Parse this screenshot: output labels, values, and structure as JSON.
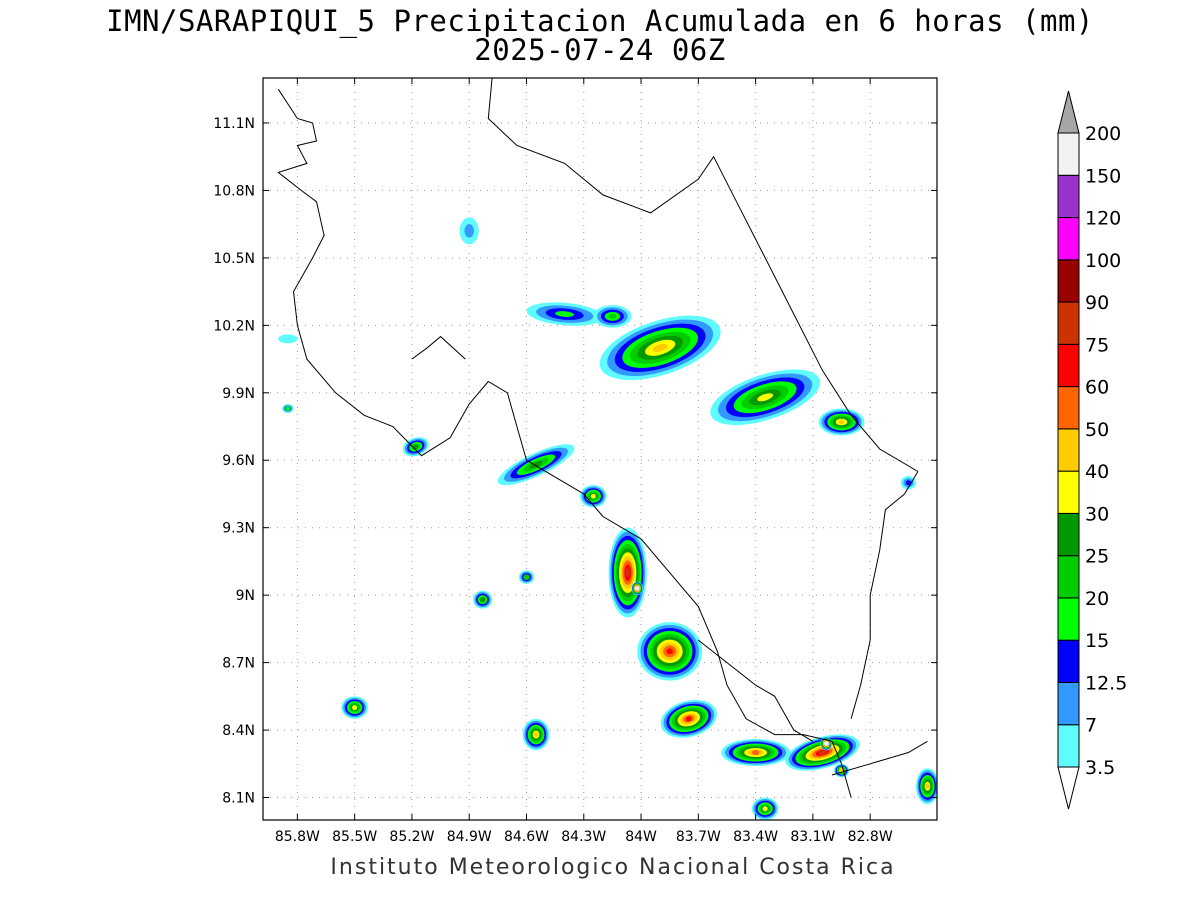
{
  "title_line1": "IMN/SARAPIQUI_5 Precipitacion Acumulada en 6 horas (mm)",
  "title_line2": "2025-07-24 06Z",
  "credit": "Instituto Meteorologico Nacional Costa Rica",
  "map": {
    "lon_range": [
      -85.98,
      -82.45
    ],
    "lat_range": [
      8.0,
      11.3
    ],
    "lon_ticks": [
      {
        "value": -85.8,
        "label": "85.8W"
      },
      {
        "value": -85.5,
        "label": "85.5W"
      },
      {
        "value": -85.2,
        "label": "85.2W"
      },
      {
        "value": -84.9,
        "label": "84.9W"
      },
      {
        "value": -84.6,
        "label": "84.6W"
      },
      {
        "value": -84.3,
        "label": "84.3W"
      },
      {
        "value": -84.0,
        "label": "84W"
      },
      {
        "value": -83.7,
        "label": "83.7W"
      },
      {
        "value": -83.4,
        "label": "83.4W"
      },
      {
        "value": -83.1,
        "label": "83.1W"
      },
      {
        "value": -82.8,
        "label": "82.8W"
      }
    ],
    "lat_ticks": [
      {
        "value": 11.1,
        "label": "11.1N"
      },
      {
        "value": 10.8,
        "label": "10.8N"
      },
      {
        "value": 10.5,
        "label": "10.5N"
      },
      {
        "value": 10.2,
        "label": "10.2N"
      },
      {
        "value": 9.9,
        "label": "9.9N"
      },
      {
        "value": 9.6,
        "label": "9.6N"
      },
      {
        "value": 9.3,
        "label": "9.3N"
      },
      {
        "value": 9.0,
        "label": "9N"
      },
      {
        "value": 8.7,
        "label": "8.7N"
      },
      {
        "value": 8.4,
        "label": "8.4N"
      },
      {
        "value": 8.1,
        "label": "8.1N"
      }
    ]
  },
  "legend": {
    "levels": [
      "3.5",
      "7",
      "12.5",
      "15",
      "20",
      "25",
      "30",
      "40",
      "50",
      "60",
      "75",
      "90",
      "100",
      "120",
      "150",
      "200"
    ],
    "colors": [
      "#5ffcff",
      "#3399ff",
      "#0000ff",
      "#00ff00",
      "#00cc00",
      "#009900",
      "#ffff00",
      "#ffcc00",
      "#ff6600",
      "#ff0000",
      "#cc3300",
      "#990000",
      "#ff00ff",
      "#9933cc",
      "#f2f2f2"
    ],
    "top_color": "#a6a6a6",
    "bottom_color": "#ffffff"
  },
  "precip_cells": [
    {
      "lon": -84.4,
      "lat": 10.25,
      "rx": 0.2,
      "ry": 0.05,
      "rot": -5,
      "peak": 15
    },
    {
      "lon": -84.15,
      "lat": 10.24,
      "rx": 0.1,
      "ry": 0.05,
      "rot": 0,
      "peak": 20
    },
    {
      "lon": -83.9,
      "lat": 10.1,
      "rx": 0.33,
      "ry": 0.12,
      "rot": 18,
      "peak": 45
    },
    {
      "lon": -83.35,
      "lat": 9.88,
      "rx": 0.3,
      "ry": 0.1,
      "rot": 18,
      "peak": 30
    },
    {
      "lon": -82.95,
      "lat": 9.77,
      "rx": 0.12,
      "ry": 0.06,
      "rot": 0,
      "peak": 40
    },
    {
      "lon": -85.18,
      "lat": 9.66,
      "rx": 0.07,
      "ry": 0.04,
      "rot": 20,
      "peak": 25
    },
    {
      "lon": -85.85,
      "lat": 9.83,
      "rx": 0.03,
      "ry": 0.02,
      "rot": 0,
      "peak": 15
    },
    {
      "lon": -84.9,
      "lat": 10.62,
      "rx": 0.05,
      "ry": 0.06,
      "rot": 0,
      "peak": 7
    },
    {
      "lon": -85.85,
      "lat": 10.14,
      "rx": 0.05,
      "ry": 0.02,
      "rot": 0,
      "peak": 3.5
    },
    {
      "lon": -84.55,
      "lat": 9.58,
      "rx": 0.22,
      "ry": 0.05,
      "rot": 25,
      "peak": 25
    },
    {
      "lon": -84.25,
      "lat": 9.44,
      "rx": 0.07,
      "ry": 0.05,
      "rot": 0,
      "peak": 30
    },
    {
      "lon": -84.07,
      "lat": 9.1,
      "rx": 0.1,
      "ry": 0.2,
      "rot": 0,
      "peak": 75
    },
    {
      "lon": -84.02,
      "lat": 9.03,
      "rx": 0.03,
      "ry": 0.03,
      "rot": 0,
      "peak": 150
    },
    {
      "lon": -83.85,
      "lat": 8.75,
      "rx": 0.17,
      "ry": 0.13,
      "rot": 0,
      "peak": 60
    },
    {
      "lon": -84.6,
      "lat": 9.08,
      "rx": 0.04,
      "ry": 0.03,
      "rot": 0,
      "peak": 20
    },
    {
      "lon": -84.83,
      "lat": 8.98,
      "rx": 0.05,
      "ry": 0.04,
      "rot": 0,
      "peak": 25
    },
    {
      "lon": -85.5,
      "lat": 8.5,
      "rx": 0.07,
      "ry": 0.05,
      "rot": 0,
      "peak": 30
    },
    {
      "lon": -84.55,
      "lat": 8.38,
      "rx": 0.07,
      "ry": 0.07,
      "rot": 0,
      "peak": 40
    },
    {
      "lon": -83.75,
      "lat": 8.45,
      "rx": 0.15,
      "ry": 0.08,
      "rot": 15,
      "peak": 60
    },
    {
      "lon": -83.4,
      "lat": 8.3,
      "rx": 0.18,
      "ry": 0.06,
      "rot": 0,
      "peak": 50
    },
    {
      "lon": -83.05,
      "lat": 8.3,
      "rx": 0.2,
      "ry": 0.07,
      "rot": 15,
      "peak": 75
    },
    {
      "lon": -83.03,
      "lat": 8.34,
      "rx": 0.03,
      "ry": 0.03,
      "rot": 0,
      "peak": 150
    },
    {
      "lon": -82.95,
      "lat": 8.22,
      "rx": 0.04,
      "ry": 0.03,
      "rot": 0,
      "peak": 40
    },
    {
      "lon": -83.35,
      "lat": 8.05,
      "rx": 0.07,
      "ry": 0.05,
      "rot": 0,
      "peak": 30
    },
    {
      "lon": -82.5,
      "lat": 8.15,
      "rx": 0.06,
      "ry": 0.08,
      "rot": 0,
      "peak": 40
    },
    {
      "lon": -82.6,
      "lat": 9.5,
      "rx": 0.04,
      "ry": 0.03,
      "rot": 0,
      "peak": 12.5
    }
  ],
  "coastlines": [
    [
      [
        -85.9,
        11.25
      ],
      [
        -85.8,
        11.12
      ],
      [
        -85.72,
        11.1
      ],
      [
        -85.7,
        11.02
      ],
      [
        -85.8,
        11.0
      ],
      [
        -85.75,
        10.92
      ],
      [
        -85.9,
        10.88
      ],
      [
        -85.78,
        10.8
      ],
      [
        -85.7,
        10.75
      ],
      [
        -85.66,
        10.6
      ],
      [
        -85.72,
        10.5
      ],
      [
        -85.82,
        10.35
      ],
      [
        -85.8,
        10.2
      ],
      [
        -85.75,
        10.05
      ],
      [
        -85.6,
        9.9
      ],
      [
        -85.45,
        9.8
      ],
      [
        -85.3,
        9.75
      ],
      [
        -85.15,
        9.62
      ],
      [
        -85.0,
        9.7
      ],
      [
        -84.9,
        9.85
      ],
      [
        -84.8,
        9.95
      ],
      [
        -84.7,
        9.9
      ],
      [
        -84.65,
        9.75
      ],
      [
        -84.6,
        9.6
      ],
      [
        -84.4,
        9.5
      ],
      [
        -84.3,
        9.45
      ],
      [
        -84.2,
        9.35
      ],
      [
        -84.0,
        9.25
      ],
      [
        -83.85,
        9.1
      ],
      [
        -83.7,
        8.95
      ],
      [
        -83.6,
        8.75
      ],
      [
        -83.55,
        8.6
      ],
      [
        -83.45,
        8.45
      ],
      [
        -83.3,
        8.38
      ],
      [
        -83.15,
        8.38
      ],
      [
        -83.0,
        8.35
      ],
      [
        -82.95,
        8.25
      ],
      [
        -82.9,
        8.1
      ]
    ],
    [
      [
        -84.92,
        10.05
      ],
      [
        -85.05,
        10.15
      ],
      [
        -85.12,
        10.1
      ],
      [
        -85.2,
        10.05
      ]
    ],
    [
      [
        -84.78,
        11.3
      ],
      [
        -84.8,
        11.12
      ],
      [
        -84.65,
        11.0
      ],
      [
        -84.4,
        10.92
      ],
      [
        -84.2,
        10.78
      ],
      [
        -83.95,
        10.7
      ],
      [
        -83.7,
        10.85
      ],
      [
        -83.62,
        10.95
      ],
      [
        -83.5,
        10.75
      ],
      [
        -83.35,
        10.5
      ],
      [
        -83.2,
        10.25
      ],
      [
        -83.05,
        10.0
      ],
      [
        -82.9,
        9.8
      ],
      [
        -82.75,
        9.65
      ],
      [
        -82.55,
        9.55
      ]
    ],
    [
      [
        -82.55,
        9.55
      ],
      [
        -82.62,
        9.45
      ],
      [
        -82.72,
        9.38
      ],
      [
        -82.75,
        9.2
      ],
      [
        -82.8,
        9.0
      ],
      [
        -82.8,
        8.8
      ],
      [
        -82.85,
        8.6
      ],
      [
        -82.9,
        8.45
      ]
    ],
    [
      [
        -83.7,
        8.8
      ],
      [
        -83.55,
        8.7
      ],
      [
        -83.4,
        8.6
      ],
      [
        -83.3,
        8.55
      ],
      [
        -83.2,
        8.4
      ],
      [
        -83.1,
        8.35
      ]
    ],
    [
      [
        -83.0,
        8.2
      ],
      [
        -82.8,
        8.25
      ],
      [
        -82.6,
        8.3
      ],
      [
        -82.5,
        8.35
      ]
    ]
  ]
}
